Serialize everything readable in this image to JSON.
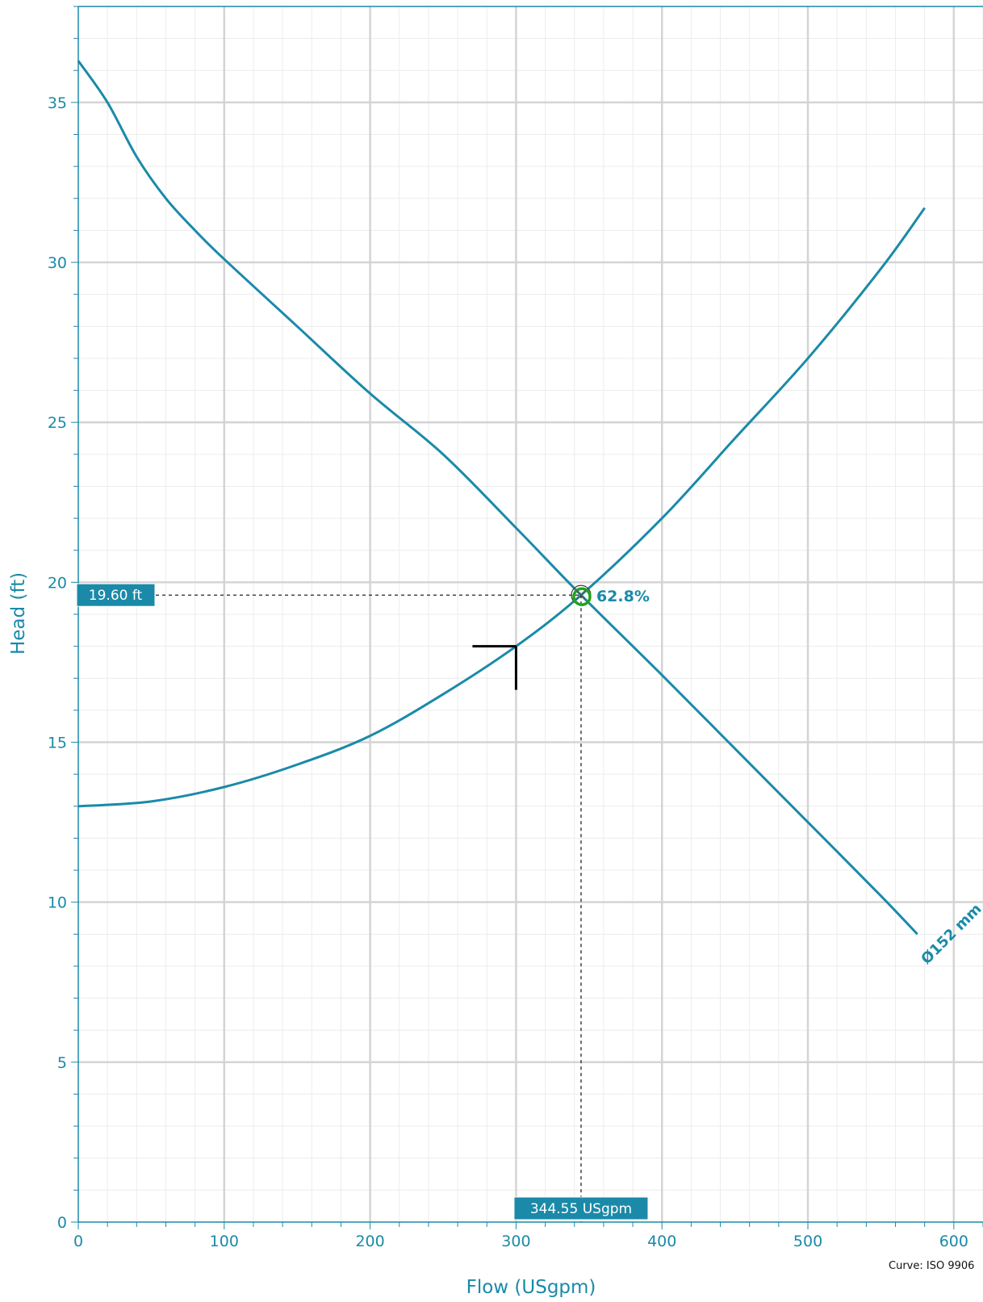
{
  "chart_data": {
    "type": "line",
    "xlabel": "Flow (USgpm)",
    "ylabel": "Head (ft)",
    "xlim": [
      0,
      620
    ],
    "ylim": [
      0,
      38
    ],
    "x_ticks": [
      0,
      100,
      200,
      300,
      400,
      500,
      600
    ],
    "y_ticks": [
      0,
      5,
      10,
      15,
      20,
      25,
      30,
      35
    ],
    "grid": true,
    "series": [
      {
        "name": "",
        "label": "Ø152 mm",
        "kind": "pump-curve",
        "x": [
          0,
          20,
          40,
          60,
          80,
          100,
          150,
          200,
          250,
          300,
          344.55,
          400,
          450,
          500,
          550,
          575
        ],
        "y": [
          36.3,
          35.0,
          33.3,
          32.0,
          31.0,
          30.1,
          28.0,
          25.9,
          24.0,
          21.7,
          19.6,
          17.1,
          14.8,
          12.5,
          10.2,
          9.0
        ]
      },
      {
        "name": "",
        "kind": "system-curve",
        "x": [
          0,
          50,
          100,
          150,
          200,
          250,
          300,
          344.55,
          400,
          450,
          500,
          550,
          580
        ],
        "y": [
          13.0,
          13.15,
          13.6,
          14.3,
          15.2,
          16.5,
          18.0,
          19.6,
          22.0,
          24.5,
          27.0,
          29.8,
          31.7
        ]
      }
    ],
    "operating_point": {
      "flow": 344.55,
      "head": 19.6,
      "flow_label": "344.55 USgpm",
      "head_label": "19.60 ft",
      "efficiency_label": "62.8%"
    },
    "duty_point": {
      "flow": 300,
      "head": 18.0
    },
    "footer": "Curve: ISO 9906",
    "colors": {
      "curve": "#1a8aa8",
      "grid_major": "#d4d4d4",
      "grid_minor": "#ececec",
      "tag_bg": "#1a8aa8",
      "operating_marker": "#22a51c",
      "duty_marker": "#000000"
    }
  }
}
